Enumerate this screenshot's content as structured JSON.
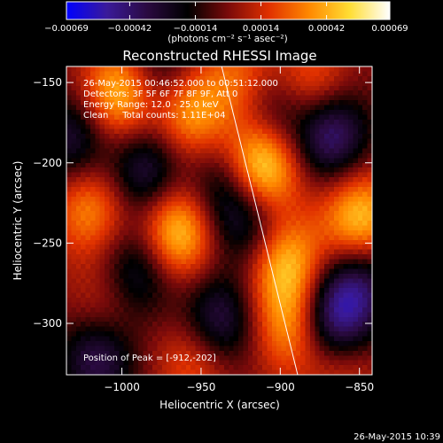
{
  "chart_data": {
    "type": "heatmap",
    "title": "Reconstructed RHESSI Image",
    "annotations": [
      "26-May-2015 00:46:52.000 to 00:51:12.000",
      "Detectors: 3F 5F 6F 7F 8F 9F, Att 0",
      "Energy Range: 12.0 - 25.0 keV",
      "Clean     Total counts: 1.11E+04"
    ],
    "peak_label": "Position of Peak = [-912,-202]",
    "peak": [
      -912,
      -202
    ],
    "xlabel": "Heliocentric X (arcsec)",
    "ylabel": "Heliocentric Y (arcsec)",
    "xlim": [
      -1035,
      -842
    ],
    "ylim": [
      -332,
      -140
    ],
    "xticks": [
      {
        "v": -1000,
        "label": "−1000"
      },
      {
        "v": -950,
        "label": "−950"
      },
      {
        "v": -900,
        "label": "−900"
      },
      {
        "v": -850,
        "label": "−850"
      }
    ],
    "yticks": [
      {
        "v": -150,
        "label": "−150"
      },
      {
        "v": -200,
        "label": "−200"
      },
      {
        "v": -250,
        "label": "−250"
      },
      {
        "v": -300,
        "label": "−300"
      }
    ],
    "colorbar": {
      "range": [
        -0.00069,
        0.00069
      ],
      "ticks": [
        {
          "v": -0.00069,
          "label": "−0.00069"
        },
        {
          "v": -0.00042,
          "label": "−0.00042"
        },
        {
          "v": -0.00014,
          "label": "−0.00014"
        },
        {
          "v": 0.00014,
          "label": "0.00014"
        },
        {
          "v": 0.00042,
          "label": "0.00042"
        },
        {
          "v": 0.00069,
          "label": "0.00069"
        }
      ],
      "unit_label": "(photons cm⁻² s⁻¹ asec⁻²)",
      "colors": [
        "#0000ff",
        "#3a1a9a",
        "#2a0a40",
        "#000000",
        "#7a0a0a",
        "#e03000",
        "#ff8800",
        "#ffdd33",
        "#ffffff"
      ]
    },
    "sources": [
      {
        "x": -912,
        "y": -202,
        "amp": 1.0
      },
      {
        "x": -965,
        "y": -243,
        "amp": 0.78
      },
      {
        "x": -1002,
        "y": -158,
        "amp": 0.72
      },
      {
        "x": -958,
        "y": -168,
        "amp": 0.62
      },
      {
        "x": -897,
        "y": -262,
        "amp": 0.68
      },
      {
        "x": -892,
        "y": -302,
        "amp": 0.58
      },
      {
        "x": -850,
        "y": -235,
        "amp": 0.72
      },
      {
        "x": -1020,
        "y": -228,
        "amp": 0.52
      },
      {
        "x": -880,
        "y": -152,
        "amp": 0.45
      },
      {
        "x": -953,
        "y": -322,
        "amp": 0.42
      },
      {
        "x": -1010,
        "y": -292,
        "amp": 0.32
      },
      {
        "x": -862,
        "y": -322,
        "amp": 0.38
      },
      {
        "x": -925,
        "y": -148,
        "amp": 0.4
      },
      {
        "x": -985,
        "y": -205,
        "amp": -0.55
      },
      {
        "x": -1015,
        "y": -320,
        "amp": -0.6
      },
      {
        "x": -990,
        "y": -268,
        "amp": -0.5
      },
      {
        "x": -940,
        "y": -300,
        "amp": -0.6
      },
      {
        "x": -867,
        "y": -300,
        "amp": -0.85
      },
      {
        "x": -868,
        "y": -182,
        "amp": -0.7
      },
      {
        "x": -935,
        "y": -215,
        "amp": -0.45
      },
      {
        "x": -905,
        "y": -170,
        "amp": -0.45
      },
      {
        "x": -1030,
        "y": -185,
        "amp": -0.5
      },
      {
        "x": -975,
        "y": -145,
        "amp": -0.4
      },
      {
        "x": -850,
        "y": -275,
        "amp": -0.5
      },
      {
        "x": -918,
        "y": -238,
        "amp": -0.45
      }
    ],
    "limb_line": [
      [
        -937,
        -140
      ],
      [
        -889,
        -332
      ]
    ]
  },
  "footer": {
    "timestamp": "26-May-2015 10:39"
  }
}
